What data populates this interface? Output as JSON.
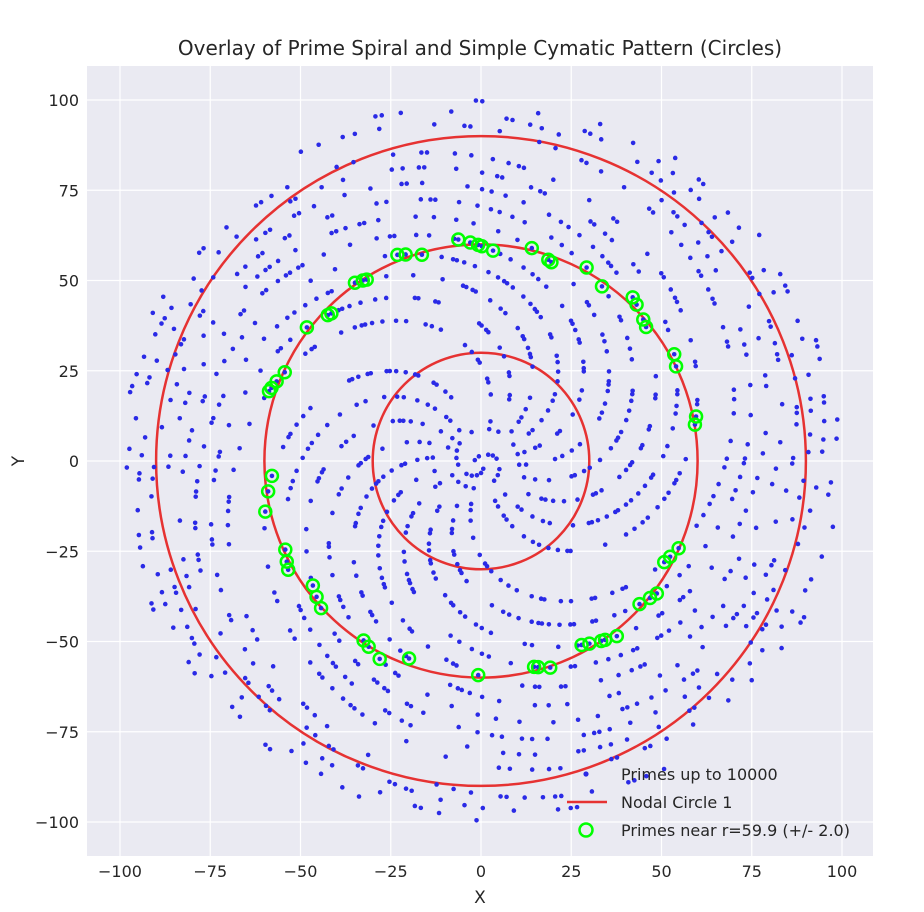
{
  "chart_data": {
    "type": "scatter",
    "title": "Overlay of Prime Spiral and Simple Cymatic Pattern (Circles)",
    "xlabel": "X",
    "ylabel": "Y",
    "xlim": [
      -100,
      100
    ],
    "ylim": [
      -100,
      100
    ],
    "xticks": [
      -100,
      -75,
      -50,
      -25,
      0,
      25,
      50,
      75,
      100
    ],
    "yticks": [
      -100,
      -75,
      -50,
      -25,
      0,
      25,
      50,
      75,
      100
    ],
    "xtick_labels": [
      "−100",
      "−75",
      "−50",
      "−25",
      "0",
      "25",
      "50",
      "75",
      "100"
    ],
    "ytick_labels": [
      "−100",
      "−75",
      "−50",
      "−25",
      "0",
      "25",
      "50",
      "75",
      "100"
    ],
    "grid": true,
    "legend_position": "bottom-right",
    "series": [
      {
        "name": "Primes up to 10000",
        "kind": "points",
        "color": "#2a2ae6",
        "rule": "prime p <= 10000 plotted at radius sqrt(p), angle p radians"
      },
      {
        "name": "Nodal Circle 1",
        "kind": "circles",
        "color": "#e63232",
        "radii": [
          30,
          60,
          90
        ]
      },
      {
        "name": "Primes near r=59.9 (+/- 2.0)",
        "kind": "ring-markers",
        "color": "#00ff00",
        "center_radius": 59.9,
        "tolerance": 2.0
      }
    ]
  }
}
